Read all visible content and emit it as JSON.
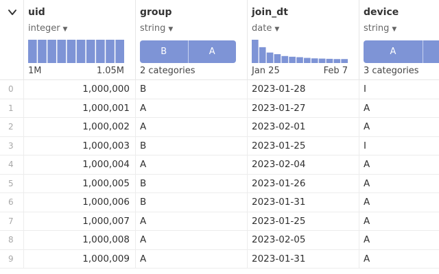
{
  "columns": [
    {
      "name": "uid",
      "type": "integer",
      "foot_left": "1M",
      "foot_right": "1.05M"
    },
    {
      "name": "group",
      "type": "string",
      "foot_left": "2 categories",
      "categories": [
        "B",
        "A"
      ],
      "fractions": [
        0.5,
        0.5
      ]
    },
    {
      "name": "join_dt",
      "type": "date",
      "foot_left": "Jan 25",
      "foot_right": "Feb 7"
    },
    {
      "name": "device",
      "type": "string",
      "foot_left": "3 categories",
      "categories": [
        "A",
        ""
      ],
      "fractions": [
        0.75,
        0.25
      ]
    }
  ],
  "uid_hist": [
    1,
    1,
    1,
    1,
    1,
    1,
    1,
    1,
    1,
    1
  ],
  "join_hist": [
    1.0,
    0.68,
    0.45,
    0.38,
    0.3,
    0.27,
    0.25,
    0.22,
    0.2,
    0.19,
    0.18,
    0.17,
    0.17
  ],
  "colors": {
    "bar": "#7e94d6",
    "text": "#2f2f2f",
    "muted": "#a8a8a8"
  },
  "rows": [
    {
      "idx": "0",
      "uid": "1,000,000",
      "group": "B",
      "join_dt": "2023-01-28",
      "device": "I"
    },
    {
      "idx": "1",
      "uid": "1,000,001",
      "group": "A",
      "join_dt": "2023-01-27",
      "device": "A"
    },
    {
      "idx": "2",
      "uid": "1,000,002",
      "group": "A",
      "join_dt": "2023-02-01",
      "device": "A"
    },
    {
      "idx": "3",
      "uid": "1,000,003",
      "group": "B",
      "join_dt": "2023-01-25",
      "device": "I"
    },
    {
      "idx": "4",
      "uid": "1,000,004",
      "group": "A",
      "join_dt": "2023-02-04",
      "device": "A"
    },
    {
      "idx": "5",
      "uid": "1,000,005",
      "group": "B",
      "join_dt": "2023-01-26",
      "device": "A"
    },
    {
      "idx": "6",
      "uid": "1,000,006",
      "group": "B",
      "join_dt": "2023-01-31",
      "device": "A"
    },
    {
      "idx": "7",
      "uid": "1,000,007",
      "group": "A",
      "join_dt": "2023-01-25",
      "device": "A"
    },
    {
      "idx": "8",
      "uid": "1,000,008",
      "group": "A",
      "join_dt": "2023-02-05",
      "device": "A"
    },
    {
      "idx": "9",
      "uid": "1,000,009",
      "group": "A",
      "join_dt": "2023-01-31",
      "device": "A"
    }
  ]
}
